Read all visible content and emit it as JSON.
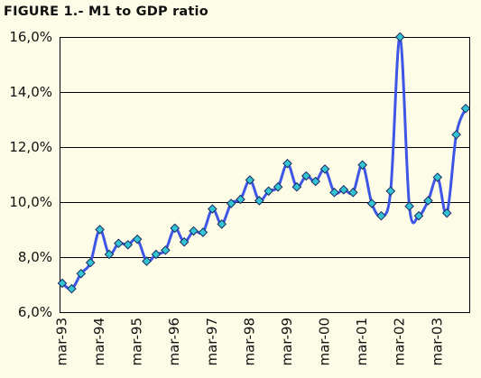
{
  "chart_data": {
    "type": "line",
    "title": "FIGURE 1.- M1 to GDP ratio",
    "xlabel": "",
    "ylabel": "",
    "ylim": [
      6,
      16
    ],
    "y_ticks": [
      "6,0%",
      "8,0%",
      "10,0%",
      "12,0%",
      "14,0%",
      "16,0%"
    ],
    "x_tick_labels": [
      "mar-93",
      "mar-94",
      "mar-95",
      "mar-96",
      "mar-97",
      "mar-98",
      "mar-99",
      "mar-00",
      "mar-01",
      "mar-02",
      "mar-03"
    ],
    "grid": true,
    "line_color": "#3e56e6",
    "marker_color": "#33c4d4",
    "background_color": "#fdfce6",
    "series": [
      {
        "values": [
          7.05,
          6.85,
          7.4,
          7.8,
          9.0,
          8.1,
          8.5,
          8.45,
          8.65,
          7.85,
          8.1,
          8.25,
          9.05,
          8.55,
          8.95,
          8.9,
          9.75,
          9.2,
          9.95,
          10.1,
          10.8,
          10.05,
          10.4,
          10.55,
          11.4,
          10.55,
          10.95,
          10.75,
          11.2,
          10.35,
          10.45,
          10.35,
          11.35,
          9.95,
          9.5,
          10.4,
          16.0,
          9.85,
          9.5,
          10.05,
          10.9,
          9.6,
          12.45,
          13.4
        ]
      }
    ]
  }
}
